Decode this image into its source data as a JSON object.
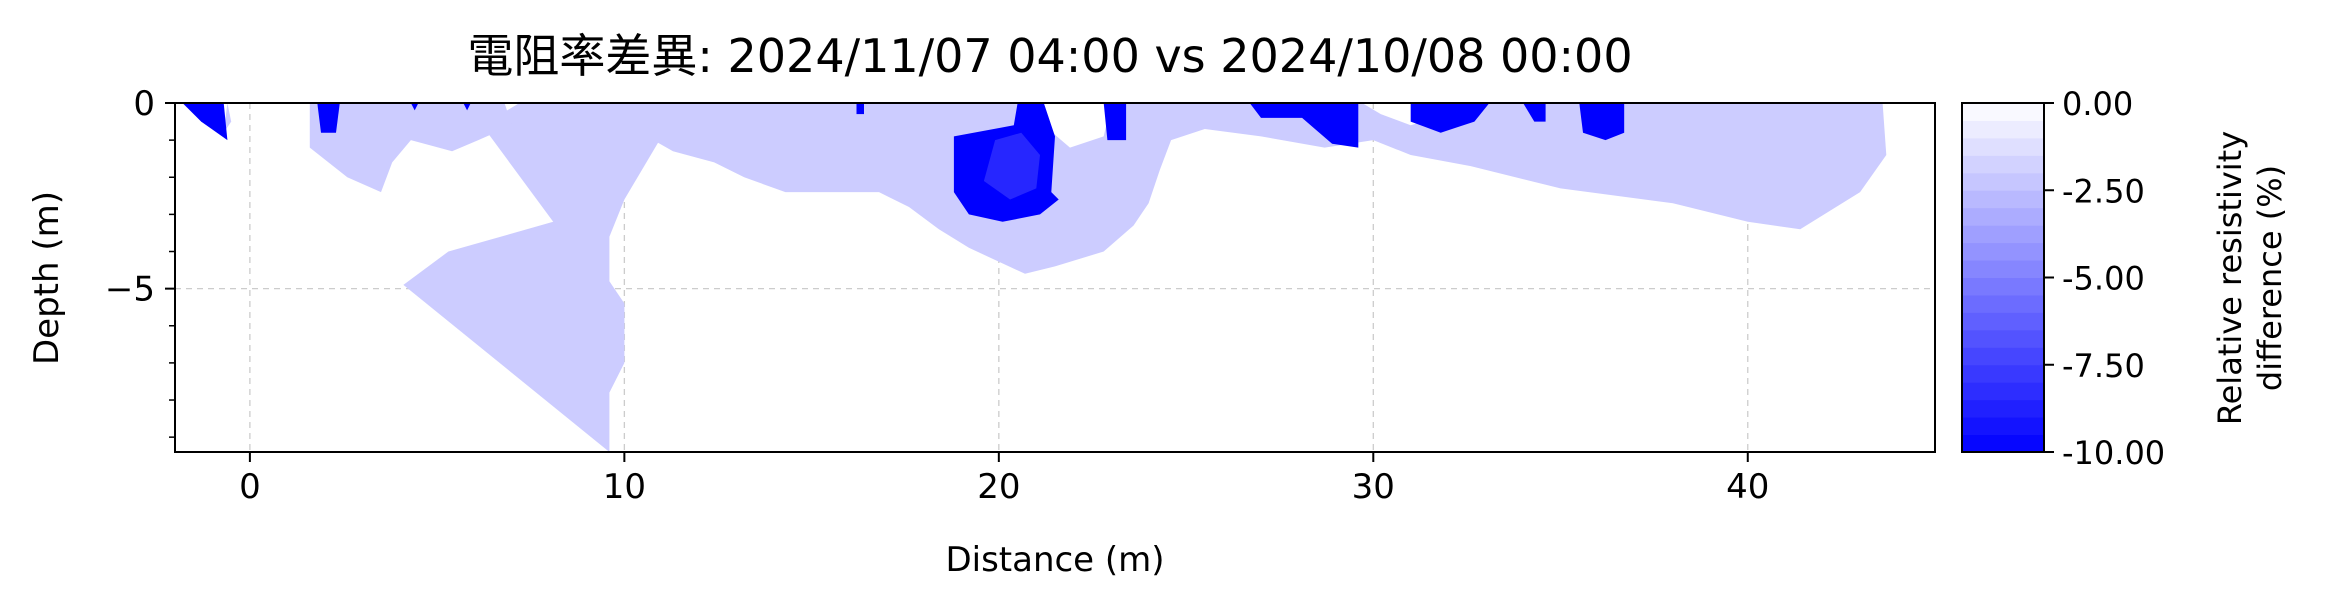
{
  "chart_data": {
    "type": "heatmap",
    "title": "電阻率差異: 2024/11/07 04:00 vs 2024/10/08 00:00",
    "xlabel": "Distance (m)",
    "ylabel": "Depth (m)",
    "xlim": [
      -2,
      45
    ],
    "ylim": [
      -9.4,
      0
    ],
    "x_ticks": [
      0,
      10,
      20,
      30,
      40
    ],
    "x_tick_labels": [
      "0",
      "10",
      "20",
      "30",
      "40"
    ],
    "y_ticks": [
      0,
      -5
    ],
    "y_tick_labels": [
      "0",
      "−5"
    ],
    "grid": true,
    "colorbar": {
      "label_lines": [
        "Relative resistivity",
        "difference (%)"
      ],
      "range": [
        -10,
        0
      ],
      "ticks": [
        0,
        -2.5,
        -5,
        -7.5,
        -10
      ],
      "tick_labels": [
        "0.00",
        "-2.50",
        "-5.00",
        "-7.50",
        "-10.00"
      ],
      "color_low": "#0000ff",
      "color_high": "#ffffff",
      "levels": 20
    },
    "regions": [
      {
        "value": -2.0,
        "points": [
          [
            4.1,
            -4.9
          ],
          [
            5.3,
            -4.0
          ],
          [
            8.1,
            -3.2
          ],
          [
            6.2,
            -0.6
          ],
          [
            7.2,
            0
          ],
          [
            15.0,
            0
          ],
          [
            14.3,
            -0.8
          ],
          [
            11.0,
            -0.9
          ],
          [
            10.0,
            -2.6
          ],
          [
            9.6,
            -3.6
          ],
          [
            9.6,
            -4.8
          ],
          [
            10.0,
            -5.4
          ],
          [
            10.0,
            -7.0
          ],
          [
            9.6,
            -7.8
          ],
          [
            9.6,
            -9.4
          ]
        ]
      },
      {
        "value": -2.0,
        "points": [
          [
            10.5,
            0
          ],
          [
            10.6,
            -0.9
          ],
          [
            11.3,
            -1.3
          ],
          [
            12.4,
            -1.6
          ],
          [
            13.2,
            -2.0
          ],
          [
            14.3,
            -2.4
          ],
          [
            15.4,
            -2.4
          ],
          [
            16.8,
            -2.4
          ],
          [
            17.6,
            -2.8
          ],
          [
            18.4,
            -3.4
          ],
          [
            19.2,
            -3.9
          ],
          [
            20.7,
            -4.6
          ],
          [
            21.5,
            -4.4
          ],
          [
            22.8,
            -4.0
          ],
          [
            23.6,
            -3.3
          ],
          [
            24.0,
            -2.7
          ],
          [
            24.3,
            -1.8
          ],
          [
            24.6,
            -1.0
          ],
          [
            25.5,
            -0.7
          ],
          [
            27.0,
            -0.9
          ],
          [
            28.7,
            -1.2
          ],
          [
            30.0,
            -1.0
          ],
          [
            31.0,
            -1.4
          ],
          [
            32.6,
            -1.7
          ],
          [
            35.0,
            -2.3
          ],
          [
            38.0,
            -2.7
          ],
          [
            40.0,
            -3.2
          ],
          [
            41.4,
            -3.4
          ],
          [
            43.0,
            -2.4
          ],
          [
            43.7,
            -1.4
          ],
          [
            43.6,
            0
          ],
          [
            32.5,
            0
          ],
          [
            32.0,
            -0.3
          ],
          [
            31.0,
            -0.6
          ],
          [
            30.2,
            -0.3
          ],
          [
            29.7,
            0
          ],
          [
            23.0,
            0
          ],
          [
            22.8,
            -0.9
          ],
          [
            21.9,
            -1.2
          ],
          [
            21.2,
            -0.6
          ],
          [
            21.2,
            0
          ],
          [
            15.4,
            0
          ],
          [
            15.8,
            -0.6
          ],
          [
            16.5,
            -0.9
          ],
          [
            17.4,
            -0.7
          ],
          [
            18.0,
            -0.3
          ],
          [
            18.5,
            0
          ]
        ]
      },
      {
        "value": -2.0,
        "points": [
          [
            1.6,
            0
          ],
          [
            1.6,
            -1.2
          ],
          [
            2.6,
            -2.0
          ],
          [
            3.5,
            -2.4
          ],
          [
            3.8,
            -1.6
          ],
          [
            4.3,
            -1.0
          ],
          [
            5.4,
            -1.3
          ],
          [
            6.1,
            -1.0
          ],
          [
            7.0,
            -0.6
          ],
          [
            6.8,
            0
          ]
        ]
      },
      {
        "value": -2.0,
        "points": [
          [
            -0.6,
            0
          ],
          [
            -0.7,
            -0.8
          ],
          [
            -0.5,
            -0.5
          ]
        ]
      },
      {
        "value": -10.0,
        "points": [
          [
            -1.8,
            0
          ],
          [
            -0.7,
            0
          ],
          [
            -0.6,
            -1.0
          ],
          [
            -1.3,
            -0.5
          ]
        ]
      },
      {
        "value": -10.0,
        "points": [
          [
            18.8,
            -0.9
          ],
          [
            20.4,
            -0.6
          ],
          [
            20.5,
            0
          ],
          [
            21.2,
            0
          ],
          [
            21.5,
            -0.9
          ],
          [
            21.4,
            -2.4
          ],
          [
            21.6,
            -2.6
          ],
          [
            21.1,
            -3.0
          ],
          [
            20.1,
            -3.2
          ],
          [
            19.2,
            -3.0
          ],
          [
            18.8,
            -2.4
          ]
        ]
      },
      {
        "value": -8.5,
        "points": [
          [
            19.9,
            -1.0
          ],
          [
            20.6,
            -0.8
          ],
          [
            21.1,
            -1.4
          ],
          [
            21.0,
            -2.3
          ],
          [
            20.3,
            -2.6
          ],
          [
            19.6,
            -2.1
          ]
        ]
      },
      {
        "value": -10.0,
        "points": [
          [
            26.7,
            0
          ],
          [
            27.0,
            -0.4
          ],
          [
            28.1,
            -0.4
          ],
          [
            28.9,
            -1.1
          ],
          [
            29.6,
            -1.2
          ],
          [
            29.6,
            0
          ]
        ]
      },
      {
        "value": -10.0,
        "points": [
          [
            31.0,
            0
          ],
          [
            31.0,
            -0.5
          ],
          [
            31.8,
            -0.8
          ],
          [
            32.7,
            -0.5
          ],
          [
            33.1,
            0
          ]
        ]
      },
      {
        "value": -10.0,
        "points": [
          [
            35.5,
            0
          ],
          [
            35.6,
            -0.8
          ],
          [
            36.2,
            -1.0
          ],
          [
            36.7,
            -0.8
          ],
          [
            36.7,
            0
          ]
        ]
      },
      {
        "value": -10.0,
        "points": [
          [
            34.0,
            0
          ],
          [
            34.3,
            -0.5
          ],
          [
            34.6,
            -0.5
          ],
          [
            34.6,
            0
          ]
        ]
      },
      {
        "value": -10.0,
        "points": [
          [
            22.8,
            0
          ],
          [
            22.9,
            -1.0
          ],
          [
            23.4,
            -1.0
          ],
          [
            23.4,
            0
          ]
        ]
      },
      {
        "value": -10.0,
        "points": [
          [
            1.8,
            0
          ],
          [
            1.9,
            -0.8
          ],
          [
            2.3,
            -0.8
          ],
          [
            2.4,
            0
          ]
        ]
      },
      {
        "value": -10.0,
        "points": [
          [
            16.2,
            0
          ],
          [
            16.2,
            -0.3
          ],
          [
            16.4,
            -0.3
          ],
          [
            16.4,
            0
          ]
        ]
      },
      {
        "value": -10.0,
        "points": [
          [
            4.3,
            0
          ],
          [
            4.4,
            -0.2
          ],
          [
            4.5,
            0
          ]
        ]
      },
      {
        "value": -10.0,
        "points": [
          [
            5.7,
            0
          ],
          [
            5.8,
            -0.2
          ],
          [
            5.9,
            0
          ]
        ]
      }
    ]
  }
}
